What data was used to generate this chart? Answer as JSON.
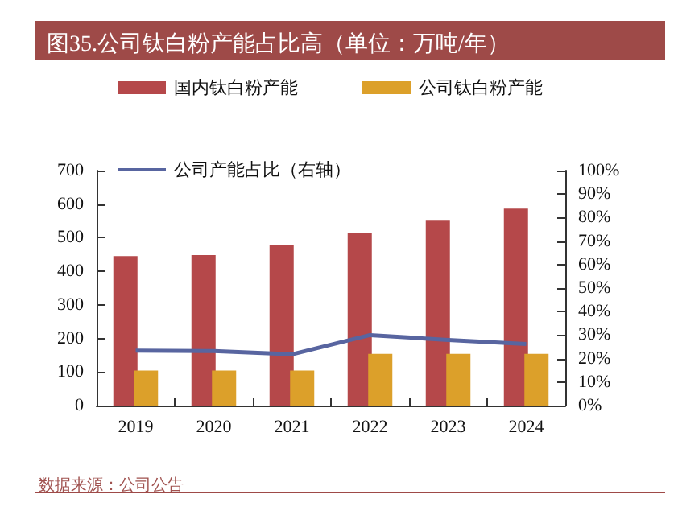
{
  "chart_data": {
    "type": "bar",
    "title": "图35.公司钛白粉产能占比高（单位：万吨/年）",
    "categories": [
      "2019",
      "2020",
      "2021",
      "2022",
      "2023",
      "2024"
    ],
    "series": [
      {
        "name": "国内钛白粉产能",
        "color": "#b5484a",
        "values": [
          445,
          448,
          478,
          514,
          551,
          587
        ]
      },
      {
        "name": "公司钛白粉产能",
        "color": "#dca02a",
        "values": [
          104,
          104,
          104,
          154,
          154,
          154
        ]
      },
      {
        "name": "公司产能占比（右轴）",
        "type": "line",
        "axis": "y2",
        "color": "#5865a0",
        "values": [
          23.4,
          23.2,
          21.8,
          30.0,
          27.9,
          26.2
        ]
      }
    ],
    "ylim": [
      0,
      700
    ],
    "yticks": [
      0,
      100,
      200,
      300,
      400,
      500,
      600,
      700
    ],
    "y2lim": [
      0,
      100
    ],
    "y2ticks": [
      {
        "value": 0,
        "label": "0%"
      },
      {
        "value": 10,
        "label": "10%"
      },
      {
        "value": 20,
        "label": "20%"
      },
      {
        "value": 30,
        "label": "30%"
      },
      {
        "value": 40,
        "label": "40%"
      },
      {
        "value": 50,
        "label": "50%"
      },
      {
        "value": 60,
        "label": "60%"
      },
      {
        "value": 70,
        "label": "70%"
      },
      {
        "value": 80,
        "label": "80%"
      },
      {
        "value": 90,
        "label": "90%"
      },
      {
        "value": 100,
        "label": "100%"
      }
    ],
    "grid": false,
    "legend": "top",
    "marker": "none",
    "annotations": [
      "数据来源：公司公告"
    ]
  }
}
